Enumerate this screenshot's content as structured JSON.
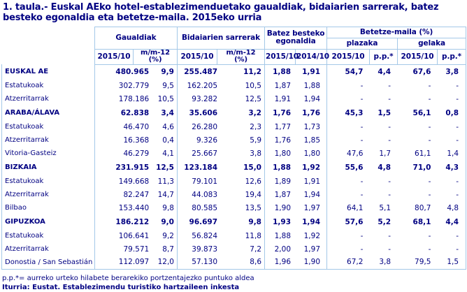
{
  "page": {
    "title": "1. taula.- Euskal AEko hotel-establezimenduetako gaualdiak, bidaiarien sarrerak, batez besteko egonaldia eta betetze-maila. 2015eko urria",
    "footnote": "p.p.*= aurreko urteko hilabete berarekiko portzentajezko puntuko aldea",
    "source": "Iturria: Eustat. Establezimendu turistiko hartzaileen inkesta"
  },
  "colors": {
    "text": "#000082",
    "border": "#a4c8e8",
    "bg": "#ffffff"
  },
  "table": {
    "groups": {
      "gaualdiak": "Gaualdiak",
      "bidaiarien": "Bidaiarien sarrerak",
      "batez": "Batez besteko egonaldia",
      "betetze": "Betetze-maila (%)",
      "plazaka": "plazaka",
      "gelaka": "gelaka"
    },
    "columns": {
      "y2015": "2015/10",
      "mm12": "m/m-12\n(%)",
      "y2014": "2014/10",
      "pp": "p.p.*"
    }
  },
  "chart_data": {
    "type": "table",
    "title": "1. taula.- Euskal AEko hotel-establezimenduetako gaualdiak, bidaiarien sarrerak, batez besteko egonaldia eta betetze-maila. 2015eko urria",
    "columns": [
      "Gaualdiak 2015/10",
      "Gaualdiak m/m-12 (%)",
      "Bidaiarien sarrerak 2015/10",
      "Bidaiarien sarrerak m/m-12 (%)",
      "Batez besteko egonaldia 2015/10",
      "Batez besteko egonaldia 2014/10",
      "Betetze-maila plazaka 2015/10",
      "Betetze-maila plazaka p.p.*",
      "Betetze-maila gelaka 2015/10",
      "Betetze-maila gelaka p.p.*"
    ],
    "rows": [
      {
        "label": "EUSKAL AE",
        "bold": true,
        "values": [
          "480.965",
          "9,9",
          "255.487",
          "11,2",
          "1,88",
          "1,91",
          "54,7",
          "4,4",
          "67,6",
          "3,8"
        ]
      },
      {
        "label": "Estatukoak",
        "bold": false,
        "values": [
          "302.779",
          "9,5",
          "162.205",
          "10,5",
          "1,87",
          "1,88",
          "-",
          "-",
          "-",
          "-"
        ]
      },
      {
        "label": "Atzerritarrak",
        "bold": false,
        "values": [
          "178.186",
          "10,5",
          "93.282",
          "12,5",
          "1,91",
          "1,94",
          "-",
          "-",
          "-",
          "-"
        ]
      },
      {
        "label": "ARABA/ÁLAVA",
        "bold": true,
        "values": [
          "62.838",
          "3,4",
          "35.606",
          "3,2",
          "1,76",
          "1,76",
          "45,3",
          "1,5",
          "56,1",
          "0,8"
        ]
      },
      {
        "label": "Estatukoak",
        "bold": false,
        "values": [
          "46.470",
          "4,6",
          "26.280",
          "2,3",
          "1,77",
          "1,73",
          "-",
          "-",
          "-",
          "-"
        ]
      },
      {
        "label": "Atzerritarrak",
        "bold": false,
        "values": [
          "16.368",
          "0,4",
          "9.326",
          "5,9",
          "1,76",
          "1,85",
          "-",
          "-",
          "-",
          "-"
        ]
      },
      {
        "label": "Vitoria-Gasteiz",
        "bold": false,
        "values": [
          "46.279",
          "4,1",
          "25.667",
          "3,8",
          "1,80",
          "1,80",
          "47,6",
          "1,7",
          "61,1",
          "1,4"
        ]
      },
      {
        "label": "BIZKAIA",
        "bold": true,
        "values": [
          "231.915",
          "12,5",
          "123.184",
          "15,0",
          "1,88",
          "1,92",
          "55,6",
          "4,8",
          "71,0",
          "4,3"
        ]
      },
      {
        "label": "Estatukoak",
        "bold": false,
        "values": [
          "149.668",
          "11,3",
          "79.101",
          "12,6",
          "1,89",
          "1,91",
          "-",
          "-",
          "-",
          "-"
        ]
      },
      {
        "label": "Atzerritarrak",
        "bold": false,
        "values": [
          "82.247",
          "14,7",
          "44.083",
          "19,4",
          "1,87",
          "1,94",
          "-",
          "-",
          "-",
          "-"
        ]
      },
      {
        "label": "Bilbao",
        "bold": false,
        "values": [
          "153.440",
          "9,8",
          "80.585",
          "13,5",
          "1,90",
          "1,97",
          "64,1",
          "5,1",
          "80,7",
          "4,8"
        ]
      },
      {
        "label": "GIPUZKOA",
        "bold": true,
        "values": [
          "186.212",
          "9,0",
          "96.697",
          "9,8",
          "1,93",
          "1,94",
          "57,6",
          "5,2",
          "68,1",
          "4,4"
        ]
      },
      {
        "label": "Estatukoak",
        "bold": false,
        "values": [
          "106.641",
          "9,2",
          "56.824",
          "11,8",
          "1,88",
          "1,92",
          "-",
          "-",
          "-",
          "-"
        ]
      },
      {
        "label": "Atzerritarrak",
        "bold": false,
        "values": [
          "79.571",
          "8,7",
          "39.873",
          "7,2",
          "2,00",
          "1,97",
          "-",
          "-",
          "-",
          "-"
        ]
      },
      {
        "label": "Donostia / San Sebastián",
        "bold": false,
        "values": [
          "112.097",
          "12,0",
          "57.130",
          "8,6",
          "1,96",
          "1,90",
          "67,2",
          "3,8",
          "79,5",
          "1,5"
        ]
      }
    ]
  }
}
